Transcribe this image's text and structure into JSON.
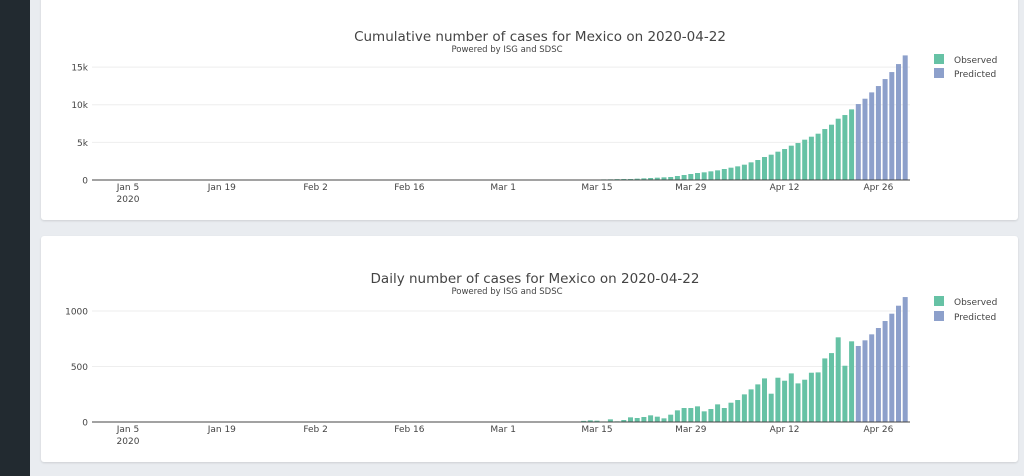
{
  "colors": {
    "observed": "#66c2a5",
    "predicted": "#8da0cb",
    "sidebar": "#222a30",
    "background": "#e9ecf0"
  },
  "chart_data": [
    {
      "type": "bar",
      "title": "Cumulative number of cases for Mexico on 2020-04-22",
      "subtitle": "Powered by ISG and SDSC",
      "xlabel": "",
      "ylabel": "",
      "x_tick_labels": [
        "Jan 5",
        "Jan 19",
        "Feb 2",
        "Feb 16",
        "Mar 1",
        "Mar 15",
        "Mar 29",
        "Apr 12",
        "Apr 26"
      ],
      "x_tick_dates": [
        "2020-01-05",
        "2020-01-19",
        "2020-02-02",
        "2020-02-16",
        "2020-03-01",
        "2020-03-15",
        "2020-03-29",
        "2020-04-12",
        "2020-04-26"
      ],
      "x_year_label": "2020",
      "y_ticks": [
        0,
        5000,
        10000,
        15000
      ],
      "y_tick_labels": [
        "0",
        "5k",
        "10k",
        "15k"
      ],
      "ylim": [
        0,
        17400
      ],
      "grid": true,
      "legend_position": "top-right",
      "series": [
        {
          "name": "Observed",
          "start_date": "2020-02-28",
          "values": [
            2,
            4,
            5,
            5,
            5,
            5,
            6,
            7,
            7,
            7,
            11,
            12,
            12,
            16,
            26,
            41,
            53,
            82,
            93,
            118,
            133,
            133,
            177,
            221,
            266,
            310,
            354,
            398,
            530,
            664,
            797,
            929,
            1018,
            1150,
            1283,
            1460,
            1637,
            1814,
            2035,
            2345,
            2655,
            3053,
            3363,
            3761,
            4115,
            4558,
            4910,
            5354,
            5752,
            6151,
            6770,
            7346,
            8142,
            8629,
            9381
          ]
        },
        {
          "name": "Predicted",
          "start_date": "2020-04-23",
          "values": [
            10089,
            10797,
            11638,
            12479,
            13408,
            14337,
            15399,
            16550
          ]
        }
      ]
    },
    {
      "type": "bar",
      "title": "Daily number of cases for Mexico on 2020-04-22",
      "subtitle": "Powered by ISG and SDSC",
      "xlabel": "",
      "ylabel": "",
      "x_tick_labels": [
        "Jan 5",
        "Jan 19",
        "Feb 2",
        "Feb 16",
        "Mar 1",
        "Mar 15",
        "Mar 29",
        "Apr 12",
        "Apr 26"
      ],
      "x_tick_dates": [
        "2020-01-05",
        "2020-01-19",
        "2020-02-02",
        "2020-02-16",
        "2020-03-01",
        "2020-03-15",
        "2020-03-29",
        "2020-04-12",
        "2020-04-26"
      ],
      "x_year_label": "2020",
      "y_ticks": [
        0,
        500,
        1000
      ],
      "y_tick_labels": [
        "0",
        "500",
        "1000"
      ],
      "ylim": [
        0,
        1185
      ],
      "grid": true,
      "legend_position": "top-right",
      "series": [
        {
          "name": "Observed",
          "start_date": "2020-02-28",
          "values": [
            2,
            2,
            1,
            0,
            0,
            0,
            1,
            1,
            0,
            0,
            4,
            1,
            0,
            4,
            10,
            15,
            12,
            5,
            24,
            6,
            18,
            42,
            36,
            45,
            60,
            48,
            33,
            66,
            105,
            126,
            126,
            141,
            96,
            117,
            159,
            126,
            174,
            198,
            249,
            294,
            339,
            393,
            255,
            399,
            372,
            438,
            348,
            381,
            444,
            447,
            573,
            621,
            763,
            507,
            727
          ]
        },
        {
          "name": "Predicted",
          "start_date": "2020-04-23",
          "values": [
            685,
            736,
            790,
            847,
            910,
            976,
            1048,
            1126
          ]
        }
      ]
    }
  ]
}
